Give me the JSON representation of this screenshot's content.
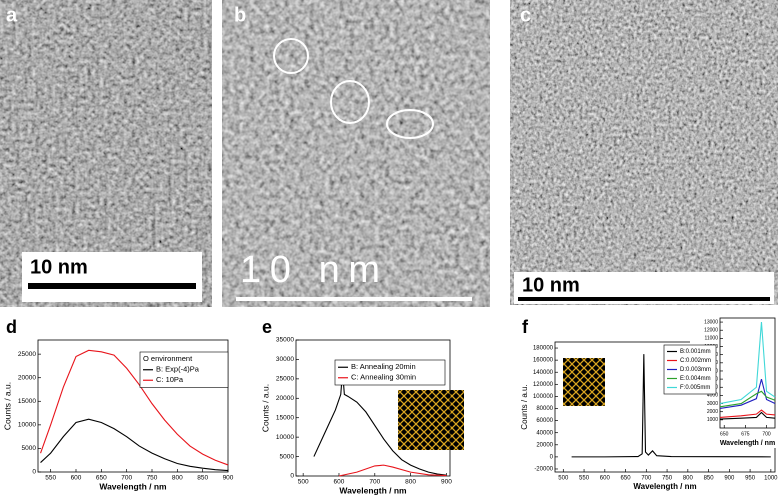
{
  "panels": [
    {
      "label": "a",
      "scale": "10 nm"
    },
    {
      "label": "b",
      "scale": "10 nm"
    },
    {
      "label": "c",
      "scale": "10 nm"
    }
  ],
  "chart_data": [
    {
      "type": "line",
      "label": "d",
      "xlabel": "Wavelength / nm",
      "ylabel": "Counts / a.u.",
      "xlim": [
        525,
        900
      ],
      "xticks": [
        550,
        600,
        650,
        700,
        750,
        800,
        850,
        900
      ],
      "ylim": [
        0,
        28000
      ],
      "yticks": [
        0,
        5000,
        10000,
        15000,
        20000,
        25000
      ],
      "legend_title": "O environment",
      "series": [
        {
          "name": "B: Exp(-4)Pa",
          "color": "#000000",
          "x": [
            530,
            550,
            575,
            600,
            625,
            650,
            675,
            700,
            725,
            750,
            775,
            800,
            825,
            850,
            875,
            900
          ],
          "values": [
            2000,
            4000,
            7500,
            10500,
            11200,
            10500,
            9200,
            7500,
            5500,
            4000,
            2800,
            1800,
            1200,
            800,
            500,
            300
          ]
        },
        {
          "name": "C: 10Pa",
          "color": "#e8141b",
          "x": [
            530,
            550,
            575,
            600,
            625,
            650,
            675,
            700,
            725,
            750,
            775,
            800,
            825,
            850,
            875,
            900
          ],
          "values": [
            4000,
            10000,
            18000,
            24500,
            25800,
            25500,
            24800,
            22000,
            18500,
            14500,
            11000,
            8000,
            5500,
            3800,
            2500,
            1500
          ]
        }
      ]
    },
    {
      "type": "line",
      "label": "e",
      "xlabel": "Wavelength / nm",
      "ylabel": "Counts / a.u.",
      "xlim": [
        480,
        910
      ],
      "xticks": [
        500,
        600,
        700,
        800,
        900
      ],
      "ylim": [
        0,
        35000
      ],
      "yticks": [
        0,
        5000,
        10000,
        15000,
        20000,
        25000,
        30000,
        35000
      ],
      "series": [
        {
          "name": "B: Annealing 20min",
          "color": "#000000",
          "x": [
            530,
            560,
            590,
            605,
            610,
            615,
            625,
            650,
            675,
            700,
            725,
            750,
            775,
            800,
            825,
            850,
            875,
            900
          ],
          "values": [
            5000,
            11000,
            17000,
            21000,
            27000,
            21000,
            20500,
            19000,
            16500,
            13000,
            9500,
            6500,
            4200,
            2800,
            1800,
            1000,
            500,
            200
          ]
        },
        {
          "name": "C: Annealing 30min",
          "color": "#e8141b",
          "x": [
            600,
            650,
            700,
            725,
            750,
            800,
            850,
            900
          ],
          "values": [
            0,
            1000,
            2600,
            2800,
            2300,
            1000,
            300,
            100
          ]
        }
      ]
    },
    {
      "type": "line",
      "label": "f",
      "xlabel": "Wavelength / nm",
      "ylabel": "Counts / a.u.",
      "xlim": [
        480,
        1010
      ],
      "xticks": [
        500,
        550,
        600,
        650,
        700,
        750,
        800,
        850,
        900,
        950,
        1000
      ],
      "ylim": [
        -25000,
        190000
      ],
      "yticks": [
        -20000,
        0,
        20000,
        40000,
        60000,
        80000,
        100000,
        120000,
        140000,
        160000,
        180000
      ],
      "series": [
        {
          "name": null,
          "color": "#000000",
          "x": [
            520,
            600,
            680,
            690,
            694,
            698,
            705,
            715,
            725,
            760,
            1000
          ],
          "values": [
            0,
            0,
            500,
            5000,
            170000,
            8000,
            3000,
            10000,
            2000,
            500,
            0
          ]
        }
      ]
    },
    {
      "type": "line",
      "xlabel": "Wavelength / nm",
      "ylabel": "Counts / a.u.",
      "xlim": [
        645,
        710
      ],
      "xticks": [
        650,
        675,
        700
      ],
      "ylim": [
        0,
        13500
      ],
      "yticks": [
        1000,
        2000,
        3000,
        4000,
        5000,
        6000,
        7000,
        8000,
        9000,
        10000,
        11000,
        12000,
        13000
      ],
      "series": [
        {
          "name": "B:0.001mm",
          "color": "#000000",
          "x": [
            645,
            670,
            688,
            694,
            700,
            710
          ],
          "values": [
            1100,
            1200,
            1300,
            1900,
            1300,
            1200
          ]
        },
        {
          "name": "C:0.002mm",
          "color": "#e8141b",
          "x": [
            645,
            670,
            688,
            694,
            700,
            710
          ],
          "values": [
            1300,
            1500,
            1700,
            2200,
            1700,
            1600
          ]
        },
        {
          "name": "D:0.003mm",
          "color": "#2020c0",
          "x": [
            645,
            670,
            688,
            694,
            700,
            710
          ],
          "values": [
            2400,
            2800,
            3600,
            6000,
            3500,
            3000
          ]
        },
        {
          "name": "E:0.004mm",
          "color": "#2ca02c",
          "x": [
            645,
            670,
            688,
            694,
            700,
            710
          ],
          "values": [
            2600,
            3000,
            4200,
            4500,
            3800,
            3400
          ]
        },
        {
          "name": "F:0.005mm",
          "color": "#40d8d8",
          "x": [
            645,
            670,
            688,
            694,
            700,
            710
          ],
          "values": [
            3000,
            3500,
            5000,
            13000,
            4500,
            3800
          ]
        }
      ]
    }
  ]
}
